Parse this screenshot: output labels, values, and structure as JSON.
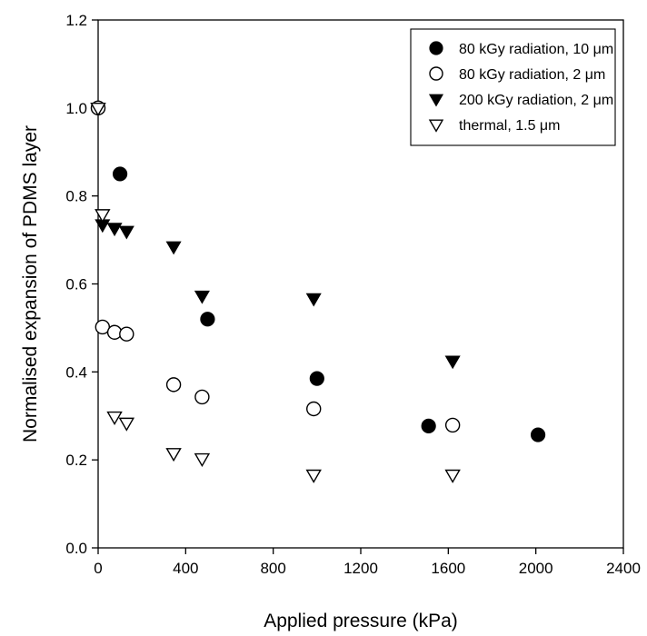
{
  "chart_data": {
    "type": "scatter",
    "title": "",
    "xlabel": "Applied pressure (kPa)",
    "ylabel": "Normalised expansion of PDMS layer",
    "xlim": [
      0,
      2400
    ],
    "ylim": [
      0.0,
      1.2
    ],
    "xticks": [
      0,
      400,
      800,
      1200,
      1600,
      2000,
      2400
    ],
    "yticks": [
      0.0,
      0.2,
      0.4,
      0.6,
      0.8,
      1.0,
      1.2
    ],
    "xtick_labels": [
      "0",
      "400",
      "800",
      "1200",
      "1600",
      "2000",
      "2400"
    ],
    "ytick_labels": [
      "0.0",
      "0.2",
      "0.4",
      "0.6",
      "0.8",
      "1.0",
      "1.2"
    ],
    "grid": false,
    "legend_position": "top-right",
    "series": [
      {
        "name": "80 kGy radiation, 10 μm",
        "marker": "filled-circle",
        "color": "#000000",
        "points": [
          [
            0,
            1.0
          ],
          [
            100,
            0.85
          ],
          [
            500,
            0.52
          ],
          [
            1000,
            0.385
          ],
          [
            1510,
            0.277
          ],
          [
            2010,
            0.257
          ]
        ]
      },
      {
        "name": "80 kGy radiation, 2 μm",
        "marker": "open-circle",
        "color": "#000000",
        "points": [
          [
            0,
            1.0
          ],
          [
            20,
            0.502
          ],
          [
            75,
            0.49
          ],
          [
            130,
            0.486
          ],
          [
            345,
            0.371
          ],
          [
            475,
            0.343
          ],
          [
            985,
            0.316
          ],
          [
            1620,
            0.279
          ]
        ]
      },
      {
        "name": "200 kGy radiation, 2 μm",
        "marker": "filled-triangle-down",
        "color": "#000000",
        "points": [
          [
            0,
            1.0
          ],
          [
            20,
            0.735
          ],
          [
            75,
            0.727
          ],
          [
            130,
            0.72
          ],
          [
            345,
            0.685
          ],
          [
            475,
            0.573
          ],
          [
            985,
            0.567
          ],
          [
            1620,
            0.425
          ]
        ]
      },
      {
        "name": "thermal, 1.5 μm",
        "marker": "open-triangle-down",
        "color": "#000000",
        "points": [
          [
            0,
            1.0
          ],
          [
            20,
            0.758
          ],
          [
            75,
            0.298
          ],
          [
            130,
            0.284
          ],
          [
            345,
            0.215
          ],
          [
            475,
            0.203
          ],
          [
            985,
            0.166
          ],
          [
            1620,
            0.166
          ]
        ]
      }
    ]
  }
}
